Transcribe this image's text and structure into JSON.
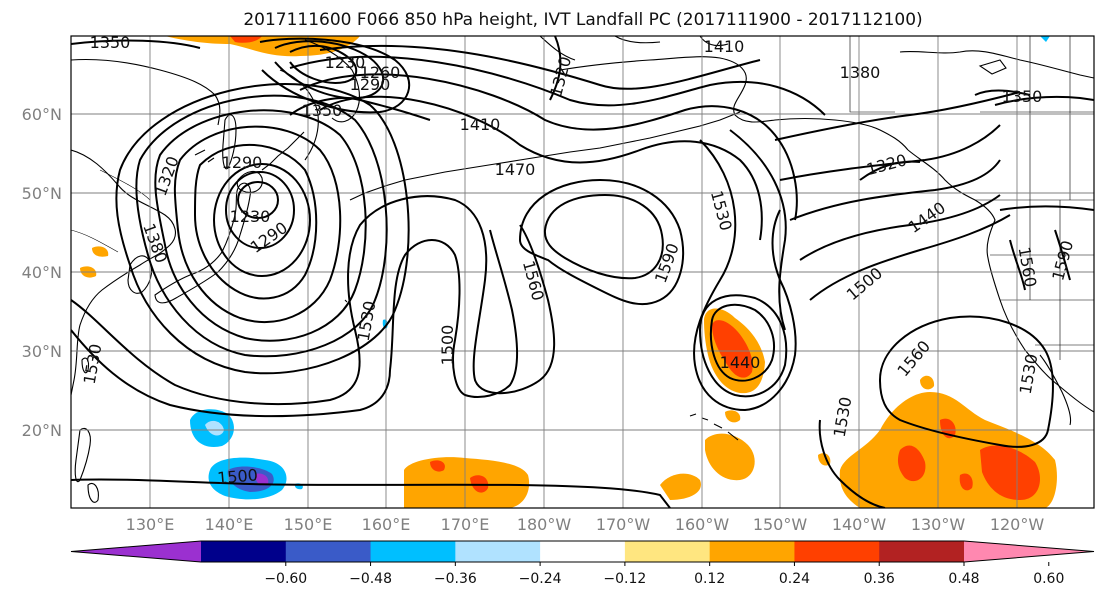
{
  "title": "2017111600 F066 850 hPa height, IVT Landfall PC (2017111900 - 2017112100)",
  "lat_ticks": [
    "60°N",
    "50°N",
    "40°N",
    "30°N",
    "20°N"
  ],
  "lon_ticks": [
    "130°E",
    "140°E",
    "150°E",
    "160°E",
    "170°E",
    "180°W",
    "170°W",
    "160°W",
    "150°W",
    "140°W",
    "130°W",
    "120°W"
  ],
  "colorbar": {
    "ticks": [
      "−0.60",
      "−0.48",
      "−0.36",
      "−0.24",
      "−0.12",
      "0.12",
      "0.24",
      "0.36",
      "0.48",
      "0.60"
    ],
    "colors": [
      "#9b30d0",
      "#00008b",
      "#3a5bc8",
      "#00bfff",
      "#b0e2ff",
      "#ffffff",
      "#ffe680",
      "#ffa500",
      "#ff4000",
      "#b22222",
      "#ff88b0"
    ]
  },
  "contour_labels": [
    "1350",
    "1230",
    "1260",
    "1290",
    "1320",
    "1410",
    "1380",
    "1350",
    "1350",
    "1410",
    "1470",
    "1290",
    "1230",
    "1290",
    "1380",
    "1320",
    "1530",
    "1560",
    "1590",
    "1320",
    "1440",
    "1500",
    "1560",
    "1590",
    "1530",
    "1530",
    "1500",
    "1440",
    "1560",
    "1530",
    "1530",
    "1500"
  ]
}
